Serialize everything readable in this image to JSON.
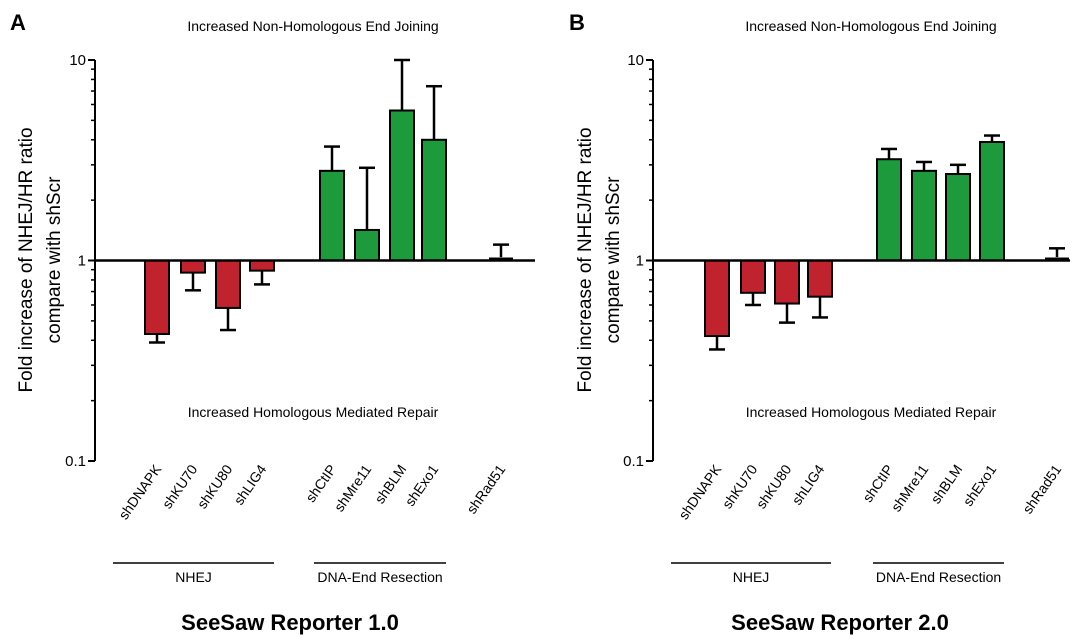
{
  "colors": {
    "nhej": "#c0232d",
    "resection": "#1c9a3c",
    "control": "#000000",
    "axis": "#000000"
  },
  "chart_data": [
    {
      "type": "bar",
      "panel": "A",
      "title": "SeeSaw Reporter 1.0",
      "ylabel": [
        "Fold increase of NHEJ/HR ratio",
        "compare with shScr"
      ],
      "yscale": "log",
      "ylim": [
        0.1,
        10
      ],
      "yticks": [
        "0.1",
        "1",
        "10"
      ],
      "baseline": 1,
      "annotations": {
        "top": "Increased Non-Homologous End Joining",
        "bottom": "Increased Homologous Mediated Repair"
      },
      "groups": [
        {
          "name": "NHEJ",
          "categories": [
            "shDNAPK",
            "shKU70",
            "shKU80",
            "shLIG4"
          ]
        },
        {
          "name": "DNA-End Resection",
          "categories": [
            "shCtIP",
            "shMre11",
            "shBLM",
            "shExo1"
          ]
        },
        {
          "name": "",
          "categories": [
            "shRad51"
          ]
        }
      ],
      "categories": [
        "shDNAPK",
        "shKU70",
        "shKU80",
        "shLIG4",
        "shCtIP",
        "shMre11",
        "shBLM",
        "shExo1",
        "shRad51"
      ],
      "values": [
        0.43,
        0.87,
        0.58,
        0.89,
        2.8,
        1.42,
        5.6,
        4.0,
        1.04
      ],
      "errors": [
        0.39,
        0.71,
        0.45,
        0.76,
        3.7,
        2.9,
        10.0,
        7.4,
        1.2
      ],
      "bar_colors": [
        "nhej",
        "nhej",
        "nhej",
        "nhej",
        "resection",
        "resection",
        "resection",
        "resection",
        "control"
      ]
    },
    {
      "type": "bar",
      "panel": "B",
      "title": "SeeSaw Reporter 2.0",
      "ylabel": [
        "Fold increase of NHEJ/HR ratio",
        "compare with shScr"
      ],
      "yscale": "log",
      "ylim": [
        0.1,
        10
      ],
      "yticks": [
        "0.1",
        "1",
        "10"
      ],
      "baseline": 1,
      "annotations": {
        "top": "Increased Non-Homologous End Joining",
        "bottom": "Increased Homologous Mediated Repair"
      },
      "groups": [
        {
          "name": "NHEJ",
          "categories": [
            "shDNAPK",
            "shKU70",
            "shKU80",
            "shLIG4"
          ]
        },
        {
          "name": "DNA-End Resection",
          "categories": [
            "shCtIP",
            "shMre11",
            "shBLM",
            "shExo1"
          ]
        },
        {
          "name": "",
          "categories": [
            "shRad51"
          ]
        }
      ],
      "categories": [
        "shDNAPK",
        "shKU70",
        "shKU80",
        "shLIG4",
        "shCtIP",
        "shMre11",
        "shBLM",
        "shExo1",
        "shRad51"
      ],
      "values": [
        0.42,
        0.69,
        0.61,
        0.66,
        3.2,
        2.8,
        2.7,
        3.9,
        1.04
      ],
      "errors": [
        0.36,
        0.6,
        0.49,
        0.52,
        3.6,
        3.1,
        3.0,
        4.2,
        1.15
      ],
      "bar_colors": [
        "nhej",
        "nhej",
        "nhej",
        "nhej",
        "resection",
        "resection",
        "resection",
        "resection",
        "control"
      ]
    }
  ]
}
